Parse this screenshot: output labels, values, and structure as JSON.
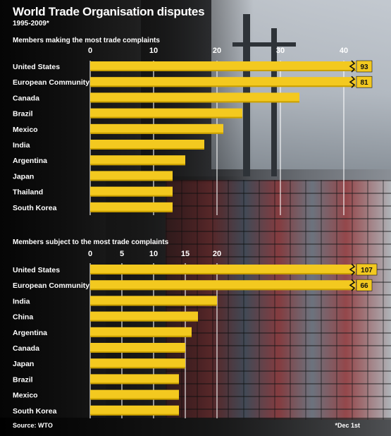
{
  "title": "World Trade Organisation disputes",
  "subtitle": "1995-2009*",
  "source": "Source: WTO",
  "footnote": "*Dec 1st",
  "colors": {
    "bar": "#f3c91f",
    "bar_edge": "#c99f00",
    "grid": "#ffffff",
    "label_box": "#f3c91f"
  },
  "chart_data": [
    {
      "type": "bar",
      "orientation": "horizontal",
      "title": "Members making the most trade complaints",
      "categories": [
        "United States",
        "European Community",
        "Canada",
        "Brazil",
        "Mexico",
        "India",
        "Argentina",
        "Japan",
        "Thailand",
        "South Korea"
      ],
      "values": [
        93,
        81,
        33,
        24,
        21,
        18,
        15,
        13,
        13,
        13
      ],
      "value_labels": [
        "93",
        "81",
        "",
        "",
        "",
        "",
        "",
        "",
        "",
        ""
      ],
      "xlim": [
        0,
        42
      ],
      "xticks": [
        0,
        10,
        20,
        30,
        40
      ],
      "axis_break": true,
      "grid": true
    },
    {
      "type": "bar",
      "orientation": "horizontal",
      "title": "Members subject to the most trade complaints",
      "categories": [
        "United States",
        "European Community",
        "India",
        "China",
        "Argentina",
        "Canada",
        "Japan",
        "Brazil",
        "Mexico",
        "South Korea"
      ],
      "values": [
        107,
        66,
        20,
        17,
        16,
        15,
        15,
        14,
        14,
        14
      ],
      "value_labels": [
        "107",
        "66",
        "",
        "",
        "",
        "",
        "",
        "",
        "",
        ""
      ],
      "xlim": [
        0,
        42
      ],
      "xticks": [
        0,
        5,
        10,
        15,
        20
      ],
      "axis_break": true,
      "grid": true
    }
  ]
}
